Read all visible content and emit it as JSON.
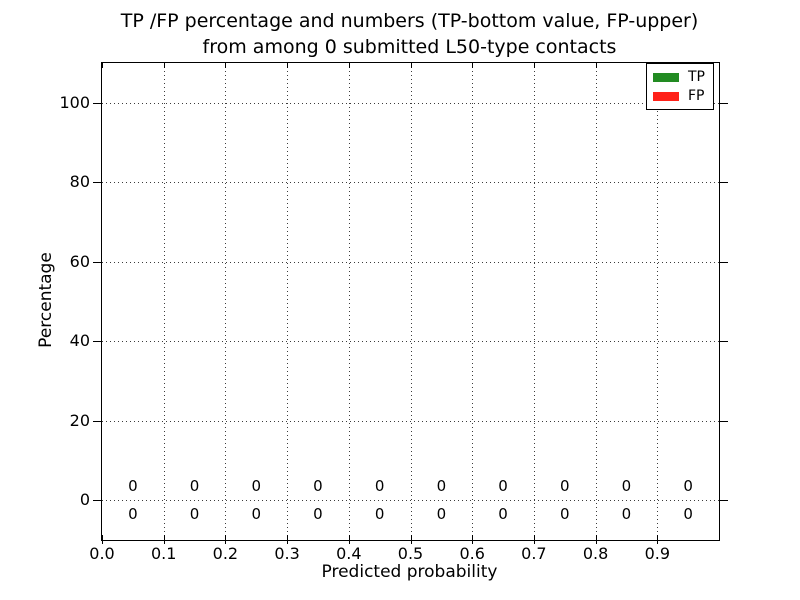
{
  "chart_data": {
    "type": "bar",
    "title_line1": "TP /FP percentage and numbers (TP-bottom value, FP-upper)",
    "title_line2": "from among 0 submitted L50-type contacts",
    "xlabel": "Predicted probability",
    "ylabel": "Percentage",
    "xlim": [
      0.0,
      1.0
    ],
    "ylim": [
      -10,
      110
    ],
    "grid": "dotted",
    "x_tick_labels": [
      "0.0",
      "0.1",
      "0.2",
      "0.3",
      "0.4",
      "0.5",
      "0.6",
      "0.7",
      "0.8",
      "0.9"
    ],
    "y_tick_labels": [
      "0",
      "20",
      "40",
      "60",
      "80",
      "100"
    ],
    "y_tick_values": [
      0,
      20,
      40,
      60,
      80,
      100
    ],
    "bin_centers": [
      0.05,
      0.15,
      0.25,
      0.35,
      0.45,
      0.55,
      0.65,
      0.75,
      0.85,
      0.95
    ],
    "series": [
      {
        "name": "TP",
        "color": "#228b22",
        "percent_values": [
          0,
          0,
          0,
          0,
          0,
          0,
          0,
          0,
          0,
          0
        ],
        "count_labels": [
          "0",
          "0",
          "0",
          "0",
          "0",
          "0",
          "0",
          "0",
          "0",
          "0"
        ],
        "label_row": "bottom"
      },
      {
        "name": "FP",
        "color": "#ff2119",
        "percent_values": [
          0,
          0,
          0,
          0,
          0,
          0,
          0,
          0,
          0,
          0
        ],
        "count_labels": [
          "0",
          "0",
          "0",
          "0",
          "0",
          "0",
          "0",
          "0",
          "0",
          "0"
        ],
        "label_row": "upper"
      }
    ],
    "legend": {
      "position": "upper right",
      "entries": [
        {
          "label": "TP",
          "color": "#228b22"
        },
        {
          "label": "FP",
          "color": "#ff2119"
        }
      ]
    }
  }
}
